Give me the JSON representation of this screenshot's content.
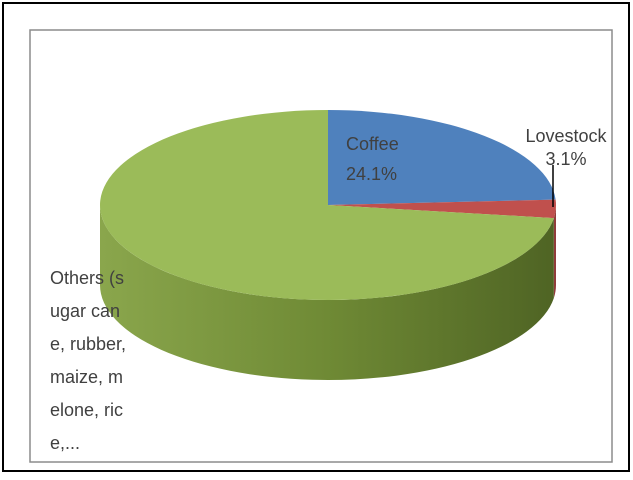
{
  "chart_data": {
    "type": "pie3d",
    "categories": [
      "Coffee",
      "Lovestock",
      "Others (sugar cane, rubber, maize, melone, rice,..."
    ],
    "values": [
      24.1,
      3.1,
      72.8
    ],
    "value_labels": [
      "24.1%",
      "3.1%",
      null
    ],
    "colors": [
      "#4f81bd",
      "#c0504d",
      "#9bbb59"
    ]
  }
}
